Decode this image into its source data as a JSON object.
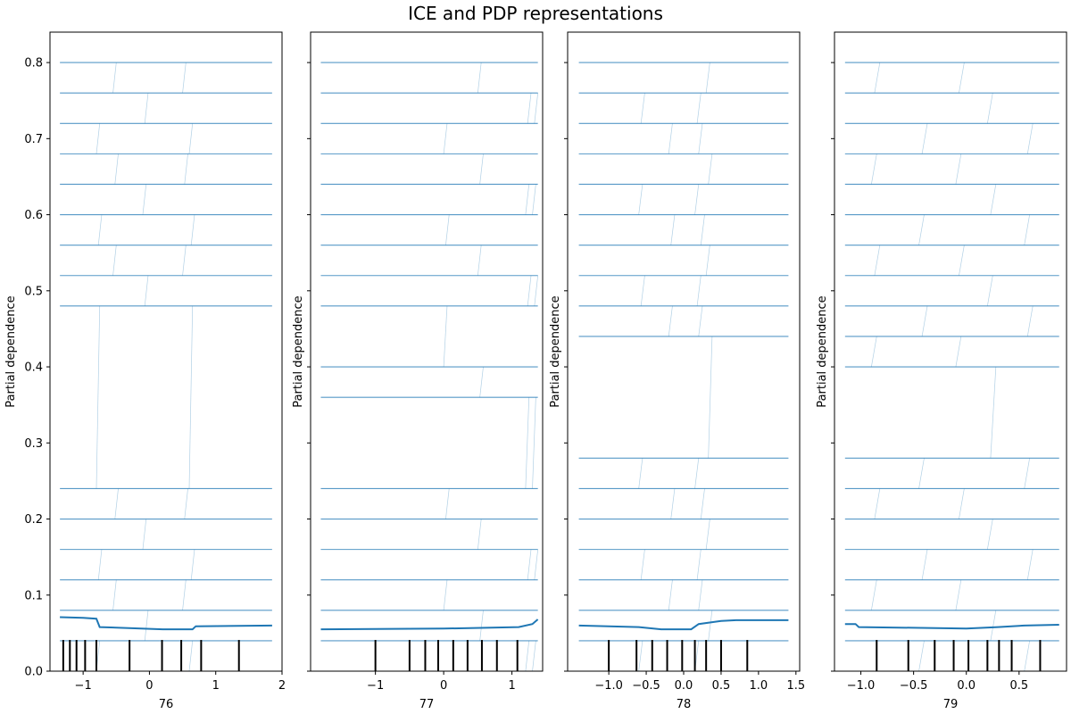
{
  "title": "ICE and PDP representations",
  "colors": {
    "ice": "#1f77b4",
    "pd": "#1f77b4",
    "deciles": "#000000",
    "frame": "#000000"
  },
  "chart_data": {
    "type": "line",
    "title": "ICE and PDP representations",
    "ylabel": "Partial dependence",
    "ylim": [
      0,
      0.84
    ],
    "yticks": [
      0.0,
      0.1,
      0.2,
      0.3,
      0.4,
      0.5,
      0.6,
      0.7,
      0.8
    ],
    "ytick_labels": [
      "0.0",
      "0.1",
      "0.2",
      "0.3",
      "0.4",
      "0.5",
      "0.6",
      "0.7",
      "0.8"
    ],
    "panels": [
      {
        "xlabel": "76",
        "xlim": [
          -1.5,
          2.0
        ],
        "x_range": [
          -1.35,
          1.85
        ],
        "xticks": [
          -1,
          0,
          1,
          2
        ],
        "xtick_labels": [
          "−1",
          "0",
          "1",
          "2"
        ],
        "show_ytick_labels": true,
        "deciles": [
          -1.3,
          -1.2,
          -1.1,
          -0.97,
          -0.8,
          -0.3,
          0.19,
          0.48,
          0.78,
          1.35
        ],
        "ice_levels": [
          0.0,
          0.04,
          0.08,
          0.12,
          0.16,
          0.2,
          0.24,
          0.48,
          0.52,
          0.56,
          0.6,
          0.64,
          0.68,
          0.72,
          0.76,
          0.8
        ],
        "ice_transitions": [
          [
            -0.8,
            0.6
          ],
          [
            -0.55,
            0.7
          ],
          [
            -0.1,
            1.2
          ],
          [
            0.6,
            1.5
          ],
          [
            1.4,
            0.5
          ]
        ],
        "pd_line": [
          [
            -1.35,
            0.071
          ],
          [
            -1.0,
            0.07
          ],
          [
            -0.8,
            0.069
          ],
          [
            -0.75,
            0.058
          ],
          [
            0.2,
            0.055
          ],
          [
            0.65,
            0.055
          ],
          [
            0.7,
            0.059
          ],
          [
            1.85,
            0.06
          ]
        ]
      },
      {
        "xlabel": "77",
        "xlim": [
          -1.95,
          1.45
        ],
        "x_range": [
          -1.8,
          1.38
        ],
        "xticks": [
          -1,
          0,
          1
        ],
        "xtick_labels": [
          "−1",
          "0",
          "1"
        ],
        "show_ytick_labels": false,
        "deciles": [
          -1.0,
          -0.5,
          -0.27,
          -0.08,
          0.14,
          0.35,
          0.56,
          0.78,
          1.08
        ],
        "ice_levels": [
          0.0,
          0.04,
          0.08,
          0.12,
          0.16,
          0.2,
          0.24,
          0.36,
          0.4,
          0.48,
          0.52,
          0.56,
          0.6,
          0.64,
          0.68,
          0.72,
          0.76,
          0.8
        ],
        "ice_transitions": [
          [
            1.2,
            1.4
          ],
          [
            0.0,
            0.1
          ],
          [
            0.5,
            0.9
          ],
          [
            1.3,
            1.35
          ]
        ],
        "pd_line": [
          [
            -1.8,
            0.055
          ],
          [
            0.0,
            0.056
          ],
          [
            1.1,
            0.058
          ],
          [
            1.3,
            0.062
          ],
          [
            1.38,
            0.068
          ]
        ]
      },
      {
        "xlabel": "78",
        "xlim": [
          -1.55,
          1.55
        ],
        "x_range": [
          -1.4,
          1.4
        ],
        "xticks": [
          -1.0,
          -0.5,
          0.0,
          0.5,
          1.0,
          1.5
        ],
        "xtick_labels": [
          "−1.0",
          "−0.5",
          "0.0",
          "0.5",
          "1.0",
          "1.5"
        ],
        "show_ytick_labels": false,
        "deciles": [
          -1.0,
          -0.63,
          -0.42,
          -0.22,
          -0.02,
          0.15,
          0.3,
          0.5,
          0.85
        ],
        "ice_levels": [
          0.0,
          0.04,
          0.08,
          0.12,
          0.16,
          0.2,
          0.24,
          0.28,
          0.44,
          0.48,
          0.52,
          0.56,
          0.6,
          0.64,
          0.68,
          0.72,
          0.76,
          0.8
        ],
        "ice_transitions": [
          [
            0.15,
            0.8
          ],
          [
            0.2,
            0.25
          ],
          [
            0.3,
            0.5
          ],
          [
            -0.6,
            0.7
          ],
          [
            -0.2,
            0.2
          ]
        ],
        "pd_line": [
          [
            -1.4,
            0.06
          ],
          [
            -0.6,
            0.058
          ],
          [
            -0.3,
            0.055
          ],
          [
            0.1,
            0.055
          ],
          [
            0.2,
            0.062
          ],
          [
            0.5,
            0.066
          ],
          [
            0.7,
            0.067
          ],
          [
            1.4,
            0.067
          ]
        ]
      },
      {
        "xlabel": "79",
        "xlim": [
          -1.25,
          0.95
        ],
        "x_range": [
          -1.15,
          0.88
        ],
        "xticks": [
          -1.0,
          -0.5,
          0.0,
          0.5
        ],
        "xtick_labels": [
          "−1.0",
          "−0.5",
          "0.0",
          "0.5"
        ],
        "show_ytick_labels": false,
        "deciles": [
          -0.85,
          -0.55,
          -0.3,
          -0.12,
          0.02,
          0.2,
          0.31,
          0.43,
          0.7
        ],
        "ice_levels": [
          0.0,
          0.04,
          0.08,
          0.12,
          0.16,
          0.2,
          0.24,
          0.28,
          0.4,
          0.44,
          0.48,
          0.52,
          0.56,
          0.6,
          0.64,
          0.68,
          0.72,
          0.76,
          0.8
        ],
        "ice_transitions": [
          [
            -0.45,
            0.3
          ],
          [
            -0.1,
            0.5
          ],
          [
            0.2,
            0.7
          ],
          [
            0.55,
            0.85
          ],
          [
            -0.9,
            -0.1
          ]
        ],
        "pd_line": [
          [
            -1.15,
            0.062
          ],
          [
            -1.05,
            0.062
          ],
          [
            -1.02,
            0.058
          ],
          [
            -0.5,
            0.057
          ],
          [
            0.0,
            0.056
          ],
          [
            0.3,
            0.058
          ],
          [
            0.55,
            0.06
          ],
          [
            0.88,
            0.061
          ]
        ]
      }
    ]
  }
}
